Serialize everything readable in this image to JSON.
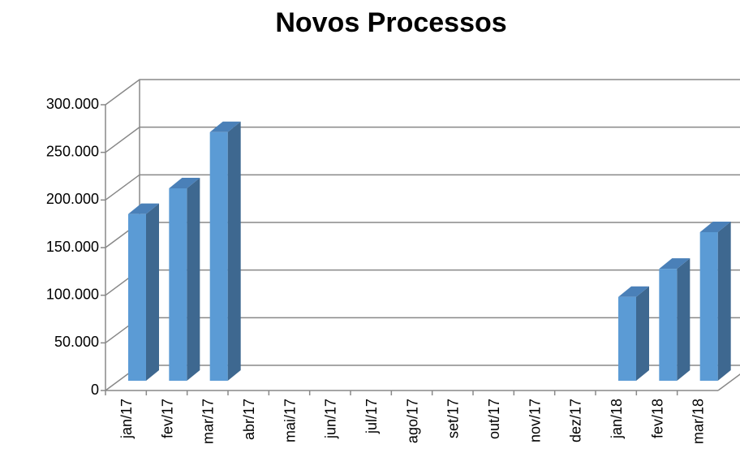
{
  "chart_data": {
    "type": "bar3d",
    "title": "Novos Processos",
    "categories": [
      "jan/17",
      "fev/17",
      "mar/17",
      "abr/17",
      "mai/17",
      "jun/17",
      "jul/17",
      "ago/17",
      "set/17",
      "out/17",
      "nov/17",
      "dez/17",
      "jan/18",
      "fev/18",
      "mar/18"
    ],
    "values": [
      175000,
      202000,
      261000,
      null,
      null,
      null,
      null,
      null,
      null,
      null,
      null,
      null,
      88000,
      117500,
      156000
    ],
    "color": "#5b9bd5",
    "ylim": [
      0,
      300000
    ],
    "yticks": [
      0,
      {
        "value": 50000,
        "label": "50.000"
      },
      {
        "value": 100000,
        "label": "100.000"
      },
      {
        "value": 150000,
        "label": "150.000"
      },
      {
        "value": 200000,
        "label": "200.000"
      },
      {
        "value": 250000,
        "label": "250.000"
      },
      {
        "value": 300000,
        "label": "300.000"
      }
    ],
    "grid": true
  }
}
